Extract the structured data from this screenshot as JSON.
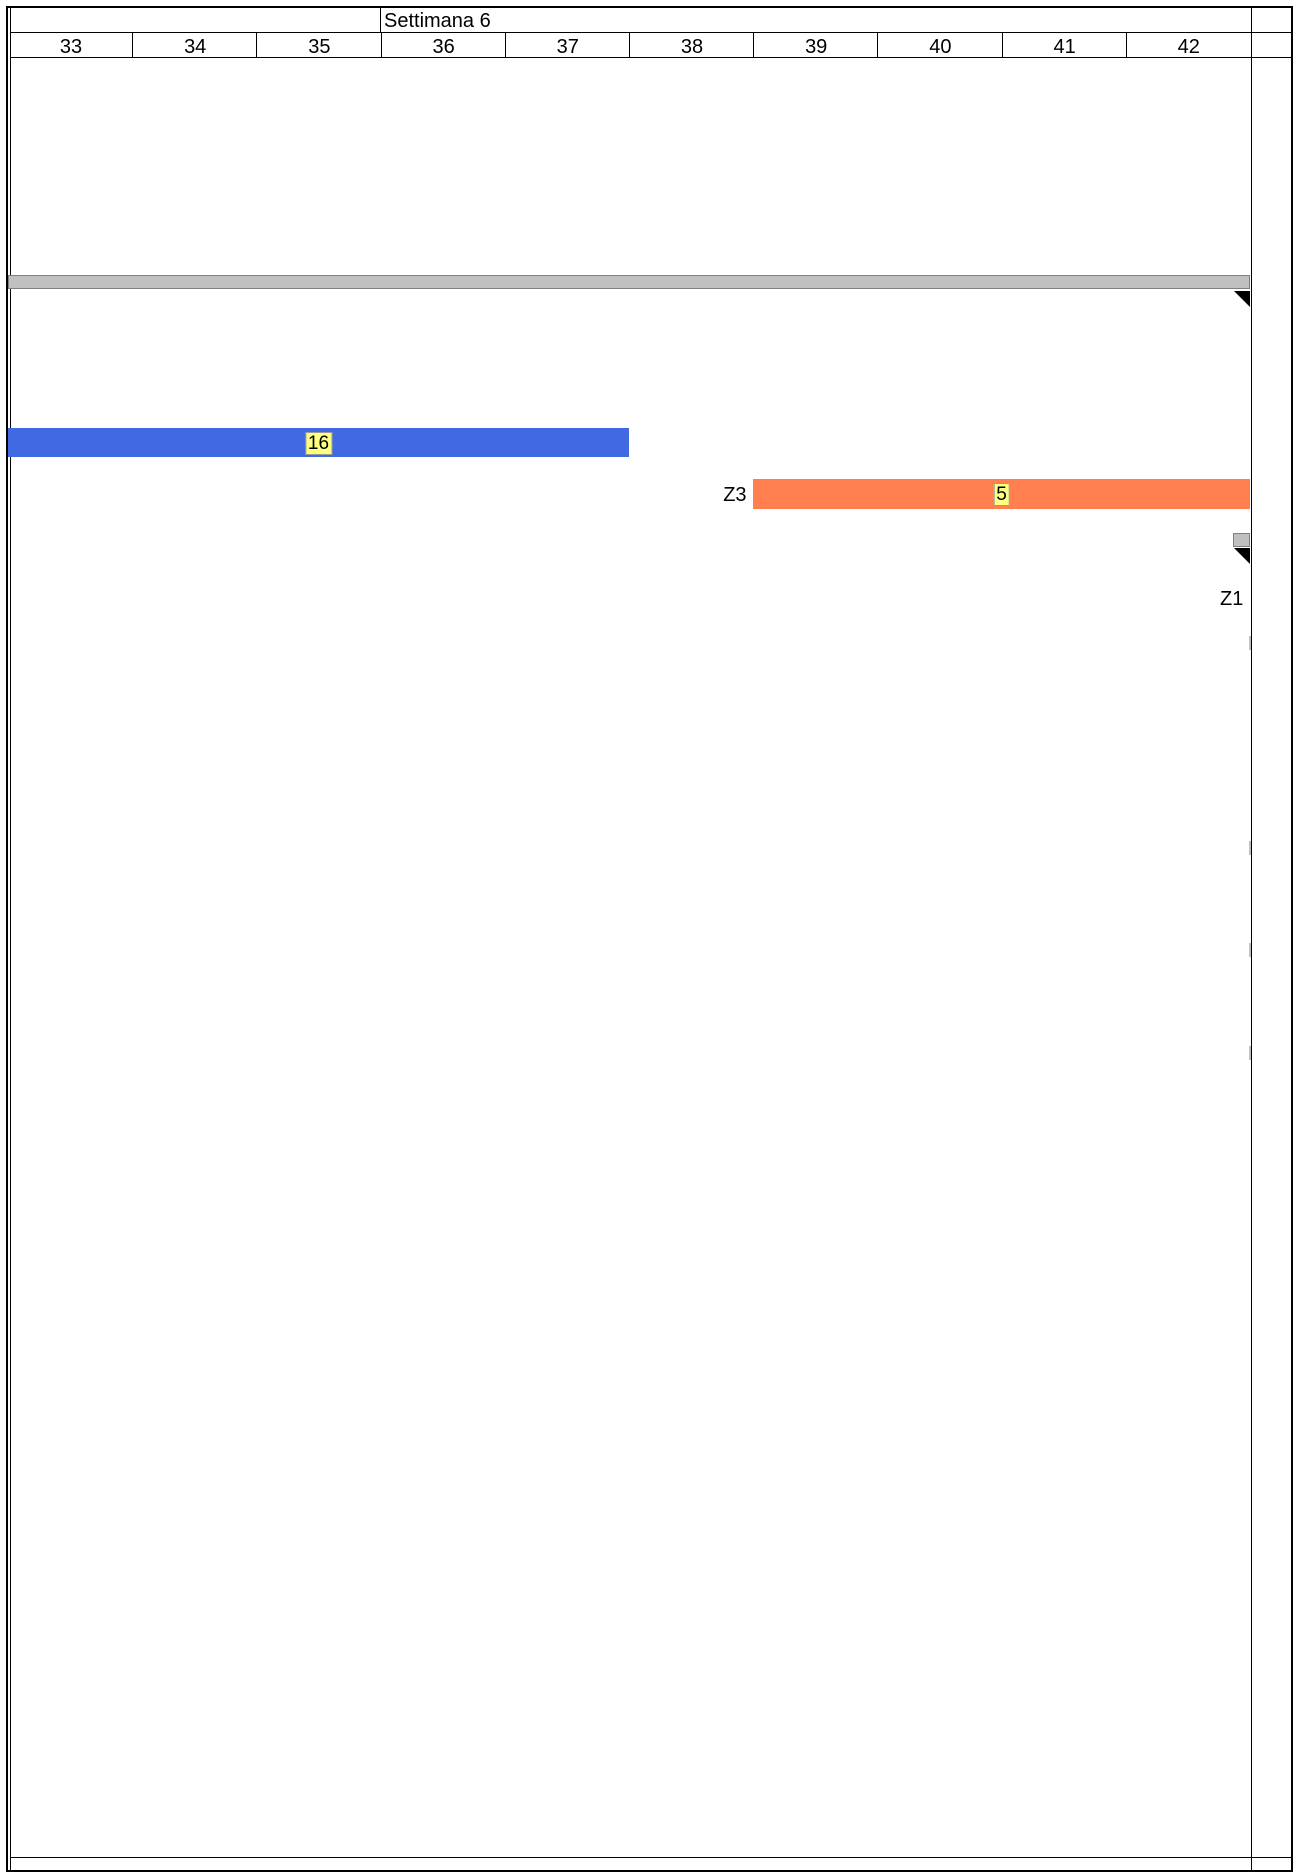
{
  "chart_data": {
    "type": "gantt",
    "header": {
      "week_label": "Settimana 6",
      "days": [
        "33",
        "34",
        "35",
        "36",
        "37",
        "38",
        "39",
        "40",
        "41",
        "42"
      ]
    },
    "bars": [
      {
        "id": "summary",
        "start": 33,
        "end": 43,
        "color": "#c0c0c0",
        "label": ""
      },
      {
        "id": "task-blue",
        "start": 33,
        "end": 38,
        "color": "#4169e1",
        "label": "16"
      },
      {
        "id": "task-orange",
        "start": 39,
        "end": 43,
        "color": "#ff7f50",
        "label": "5",
        "side_label": "Z3"
      },
      {
        "id": "milestone",
        "start": 42.86,
        "end": 43,
        "color": "#c0c0c0",
        "label": "",
        "side_label": "Z1"
      }
    ]
  }
}
